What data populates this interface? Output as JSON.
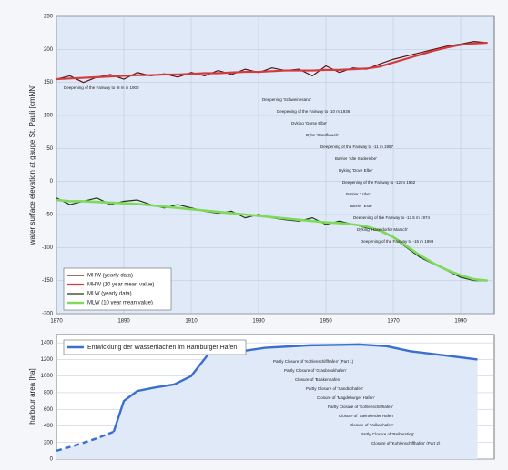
{
  "chart_data": [
    {
      "type": "line",
      "y_label": "water surface elevation at gauge St. Pauli [cmNN]",
      "x": [
        1870,
        1874,
        1878,
        1882,
        1886,
        1890,
        1894,
        1898,
        1902,
        1906,
        1910,
        1914,
        1918,
        1922,
        1926,
        1930,
        1934,
        1938,
        1942,
        1946,
        1950,
        1954,
        1958,
        1962,
        1966,
        1970,
        1974,
        1978,
        1982,
        1986,
        1990,
        1994,
        1998
      ],
      "series": [
        {
          "name": "MHW (yearly data)",
          "color": "#5a1414",
          "width": 1.2,
          "values": [
            155,
            160,
            150,
            158,
            162,
            155,
            165,
            160,
            163,
            158,
            165,
            160,
            168,
            162,
            170,
            165,
            172,
            168,
            170,
            160,
            175,
            165,
            172,
            170,
            178,
            185,
            190,
            195,
            200,
            205,
            208,
            212,
            210
          ]
        },
        {
          "name": "MHW (10 year mean value)",
          "color": "#d23c3c",
          "width": 2.2,
          "values": [
            155,
            156,
            157,
            158,
            159,
            160,
            161,
            161,
            162,
            162,
            163,
            164,
            164,
            165,
            166,
            166,
            167,
            168,
            168,
            168,
            169,
            169,
            170,
            171,
            174,
            180,
            186,
            192,
            198,
            203,
            207,
            209,
            210
          ]
        },
        {
          "name": "MLW (yearly data)",
          "color": "#1e3a12",
          "width": 1.2,
          "values": [
            -25,
            -35,
            -30,
            -25,
            -35,
            -30,
            -28,
            -35,
            -40,
            -35,
            -40,
            -45,
            -48,
            -45,
            -55,
            -50,
            -55,
            -58,
            -60,
            -55,
            -65,
            -60,
            -65,
            -70,
            -75,
            -85,
            -100,
            -115,
            -125,
            -135,
            -145,
            -150,
            -150
          ]
        },
        {
          "name": "MLW (10 year mean value)",
          "color": "#7fd95a",
          "width": 2.6,
          "values": [
            -28,
            -30,
            -30,
            -31,
            -32,
            -33,
            -34,
            -36,
            -38,
            -40,
            -42,
            -44,
            -46,
            -48,
            -50,
            -52,
            -54,
            -56,
            -58,
            -60,
            -62,
            -63,
            -65,
            -68,
            -74,
            -84,
            -98,
            -112,
            -124,
            -134,
            -142,
            -148,
            -150
          ]
        }
      ],
      "xlim": [
        1870,
        2000
      ],
      "xticks": [
        1870,
        1890,
        1910,
        1930,
        1950,
        1970,
        1990
      ],
      "ylim": [
        -200,
        250
      ],
      "yticks": [
        -200,
        -150,
        -100,
        -50,
        0,
        50,
        100,
        150,
        200,
        250
      ],
      "grid": true,
      "legend": "lower left",
      "annotations": [
        "Deepening of the Fairway to -8 m in 1900",
        "Deepening 'Schweinesand'",
        "Deepening of the Fairway to -10 m 1936",
        "Dyking 'Gorse Elbe'",
        "Dyke 'Sandhauck'",
        "Deepening of the Fairway to -11 m 1957",
        "Barrier 'Alte Süderelbe'",
        "Dyking 'Dove Elbe'",
        "Deepening of the Fairway to -12 m 1962",
        "Barrier 'Lühe'",
        "Barrier 'Este'",
        "Deepening of the Fairway to -13.5 m 1974",
        "Dyking 'Haseldorfer Marsch'",
        "Deepening of the Fairway to -15 m 1999"
      ]
    },
    {
      "type": "area",
      "y_label": "harbour area [ha]",
      "x": [
        1870,
        1876,
        1882,
        1887,
        1890,
        1894,
        1899,
        1905,
        1910,
        1915,
        1925,
        1932,
        1945,
        1960,
        1968,
        1975,
        1985,
        1995
      ],
      "series": [
        {
          "name": "Entwicklung der Wasserflächen im Hamburger Hafen",
          "color": "#3a6fd0",
          "values": [
            100,
            170,
            250,
            330,
            700,
            820,
            860,
            900,
            1000,
            1260,
            1300,
            1340,
            1370,
            1380,
            1360,
            1300,
            1250,
            1200
          ]
        }
      ],
      "dashed_points": 4,
      "xlim": [
        1870,
        2000
      ],
      "ylim": [
        0,
        1500
      ],
      "yticks": [
        0,
        200,
        400,
        600,
        800,
        1000,
        1200,
        1400
      ],
      "grid": true,
      "legend": "upper left",
      "annotations": [
        "Partly Closure of 'Kohlenschiffhafen' (Part 1)",
        "Partly Closure of 'Grasbrookhafen'",
        "Closure of 'Baakenhafen'",
        "Partly Closure of 'Sandtorhafen'",
        "Closure of 'Magdeburger Hafen'",
        "Partly Closure of 'Kohlenschiffhafen'",
        "Closure of 'Steinwerder Hafen'",
        "Closure of 'Vulkanhafen'",
        "Partly Closure of 'Reiherstieg'",
        "Closure of 'Kohlenschiffhafen' (Part 2)"
      ]
    }
  ]
}
